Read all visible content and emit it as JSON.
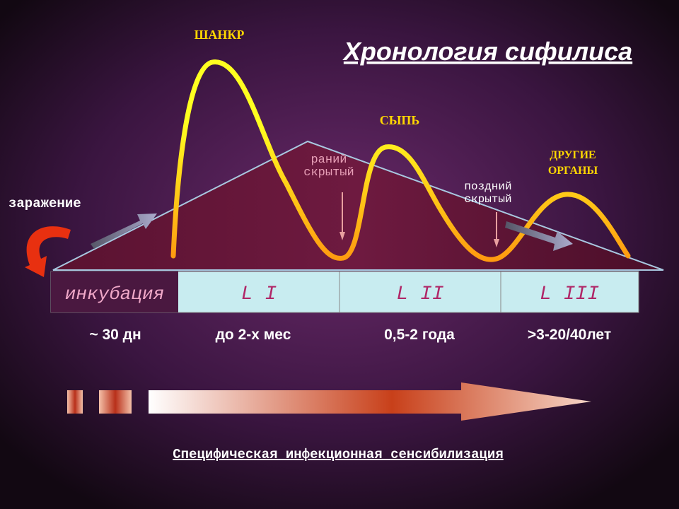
{
  "title": "Хронология сифилиса",
  "curve_labels": [
    "ШАНКР",
    "СЫПЬ",
    "ДРУГИЕ",
    "ОРГАНЫ"
  ],
  "latent_labels": {
    "early": [
      "раний",
      "скрытый"
    ],
    "late": [
      "поздний",
      "скрытый"
    ]
  },
  "infection_label": "заражение",
  "stages": [
    "инкубация",
    "L I",
    "L II",
    "L III"
  ],
  "durations": [
    "~ 30 дн",
    "до 2-х мес",
    "0,5-2 года",
    ">3-20/40лет"
  ],
  "footer": "Специфическая инфекционная сенсибилизация"
}
